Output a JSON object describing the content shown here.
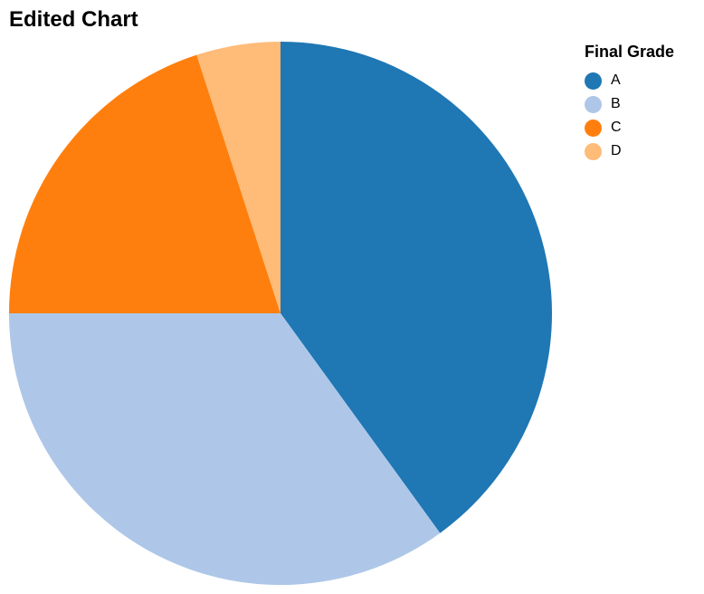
{
  "chart_data": {
    "type": "pie",
    "title": "Edited Chart",
    "legend_title": "Final Grade",
    "legend_position": "top-right",
    "categories": [
      "A",
      "B",
      "C",
      "D"
    ],
    "values": [
      40,
      35,
      20,
      5
    ],
    "colors": [
      "#1f77b4",
      "#aec7e8",
      "#ff7f0e",
      "#ffbb78"
    ]
  }
}
